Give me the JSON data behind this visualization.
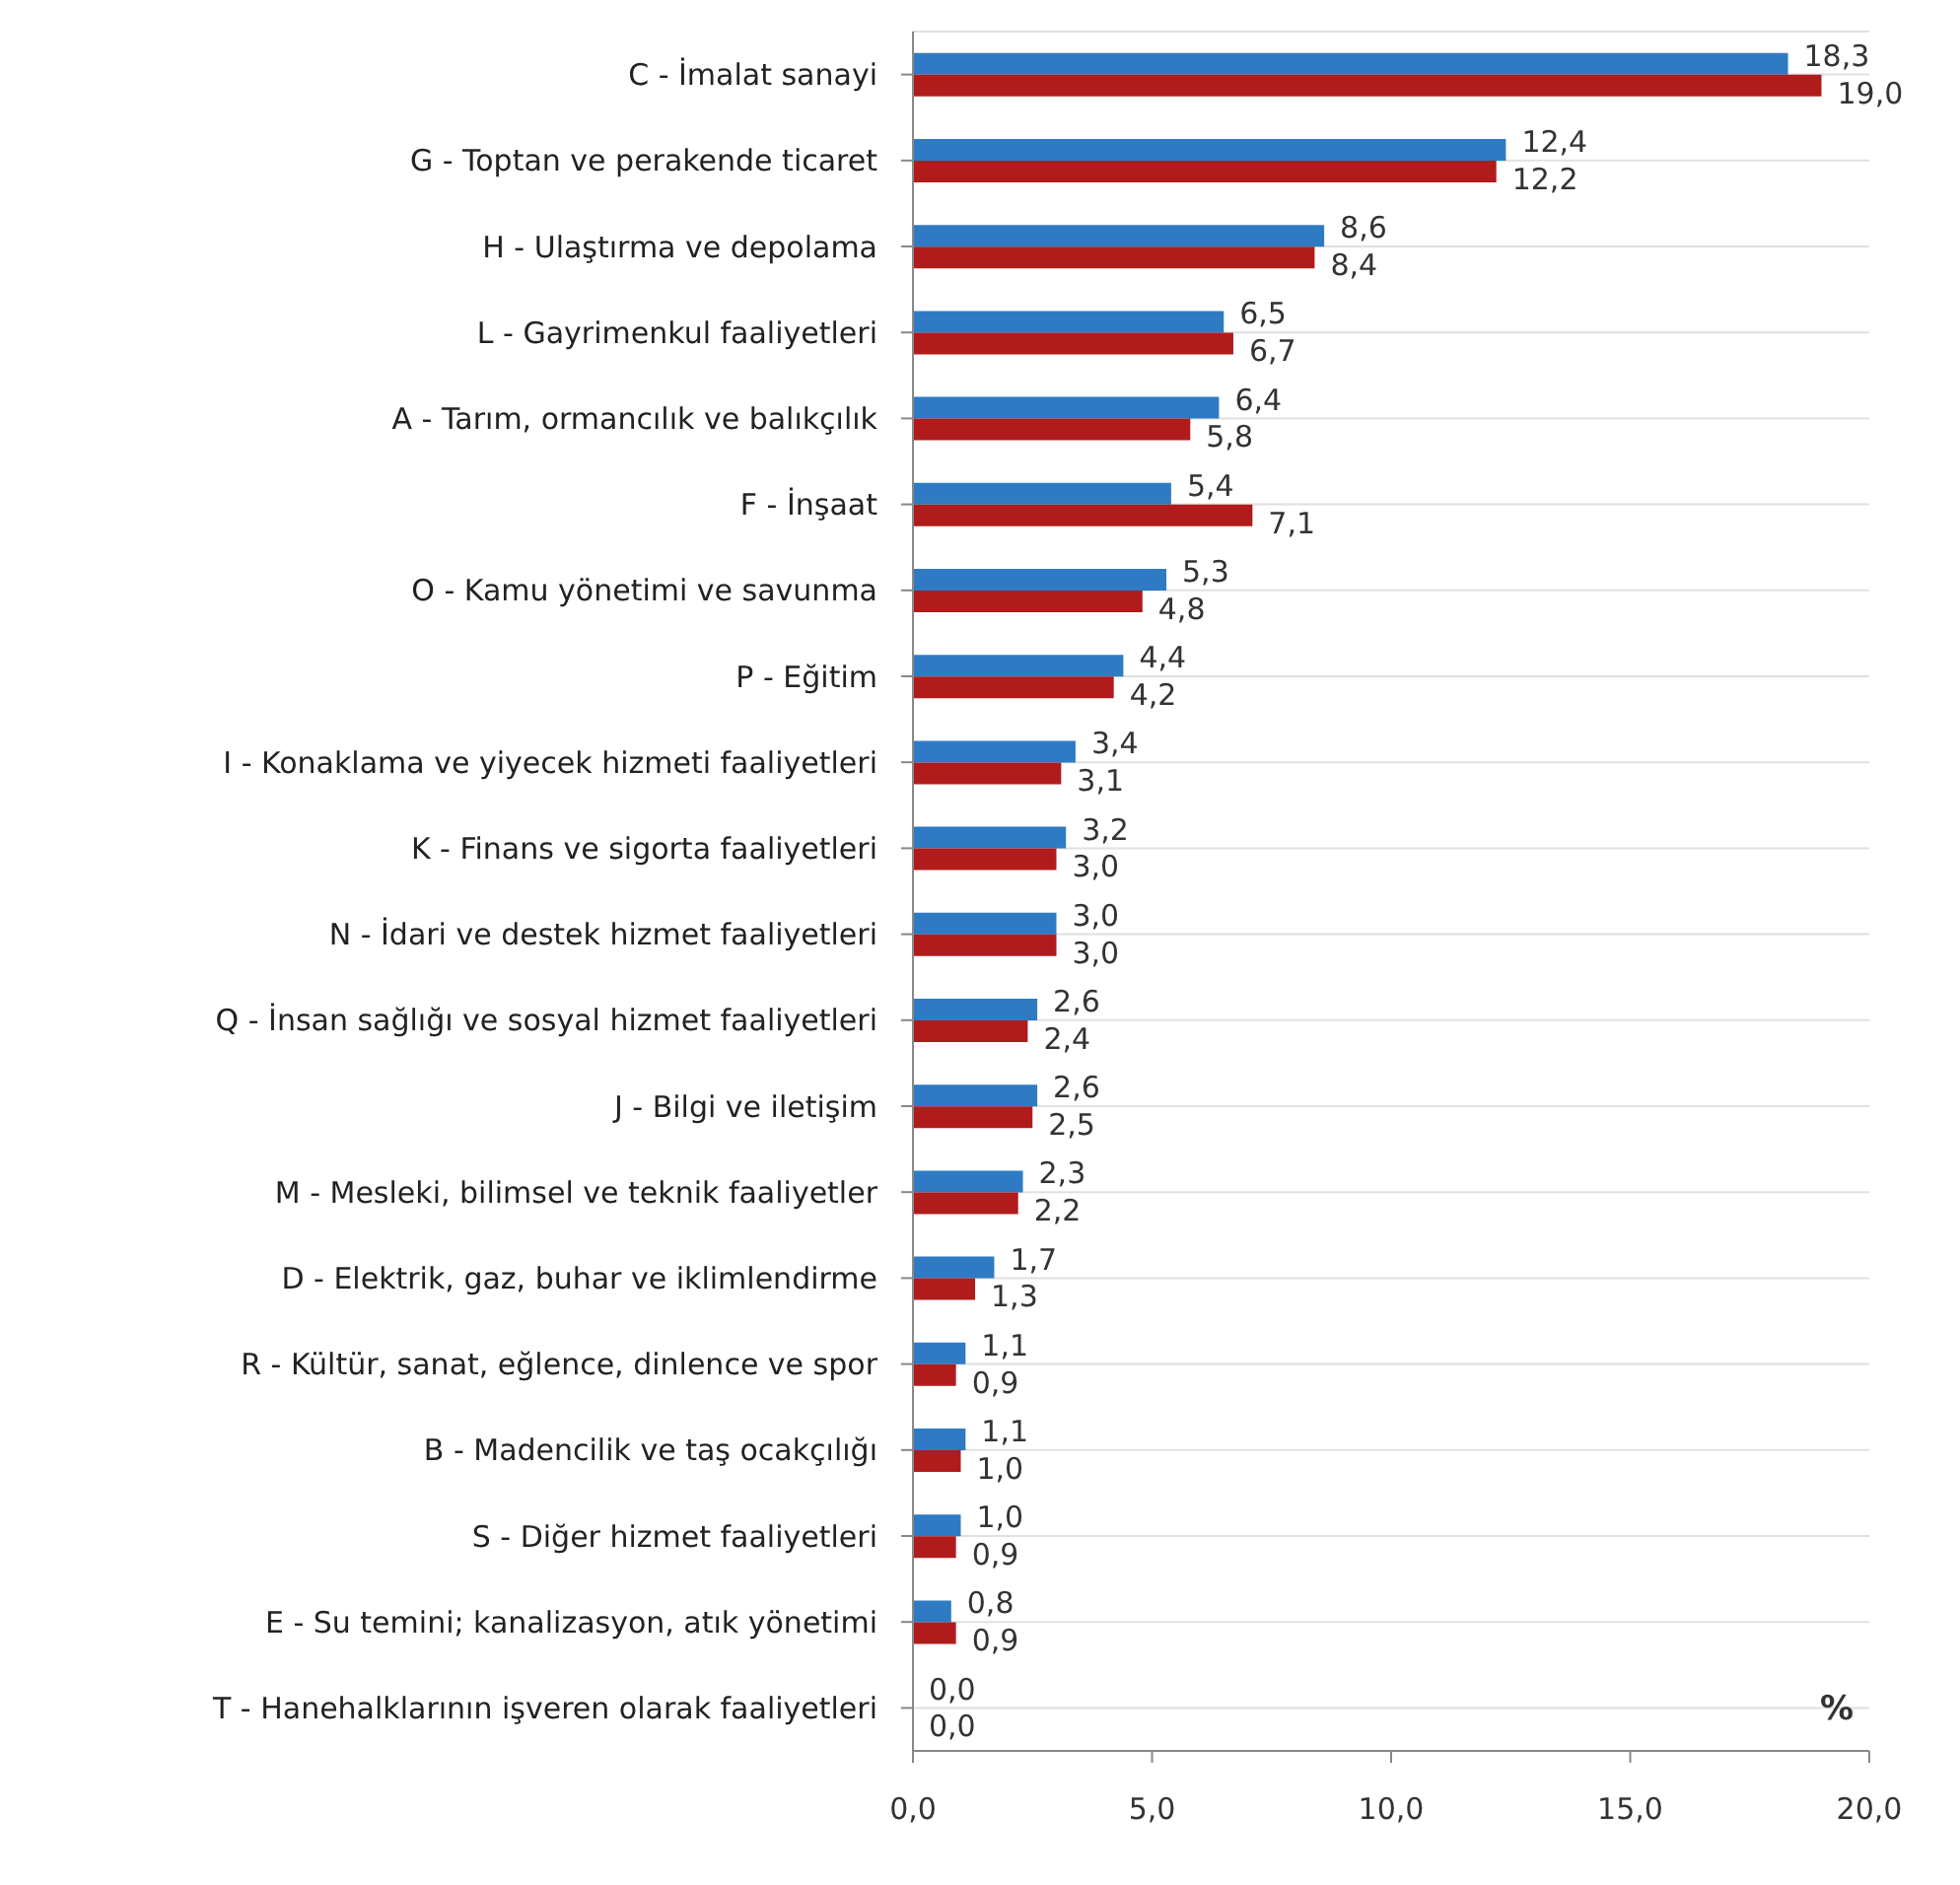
{
  "chart_data": {
    "type": "bar",
    "orientation": "horizontal",
    "categories": [
      "C - İmalat sanayi",
      "G - Toptan ve perakende ticaret",
      "H - Ulaştırma ve depolama",
      "L - Gayrimenkul faaliyetleri",
      "A - Tarım, ormancılık ve balıkçılık",
      "F - İnşaat",
      "O - Kamu yönetimi ve savunma",
      "P - Eğitim",
      "I - Konaklama ve yiyecek hizmeti faaliyetleri",
      "K - Finans ve sigorta faaliyetleri",
      "N - İdari ve destek hizmet faaliyetleri",
      "Q - İnsan sağlığı ve sosyal hizmet faaliyetleri",
      "J - Bilgi ve iletişim",
      "M - Mesleki, bilimsel ve teknik faaliyetler",
      "D - Elektrik, gaz, buhar ve iklimlendirme",
      "R - Kültür, sanat, eğlence, dinlence ve spor",
      "B - Madencilik ve taş ocakçılığı",
      "S - Diğer hizmet faaliyetleri",
      "E - Su temini; kanalizasyon, atık yönetimi",
      "T - Hanehalklarının işveren olarak faaliyetleri"
    ],
    "series": [
      {
        "color": "#2e7bc4",
        "values": [
          18.3,
          12.4,
          8.6,
          6.5,
          6.4,
          5.4,
          5.3,
          4.4,
          3.4,
          3.2,
          3.0,
          2.6,
          2.6,
          2.3,
          1.7,
          1.1,
          1.1,
          1.0,
          0.8,
          0.0
        ],
        "value_labels": [
          "18,3",
          "12,4",
          "8,6",
          "6,5",
          "6,4",
          "5,4",
          "5,3",
          "4,4",
          "3,4",
          "3,2",
          "3,0",
          "2,6",
          "2,6",
          "2,3",
          "1,7",
          "1,1",
          "1,1",
          "1,0",
          "0,8",
          "0,0"
        ]
      },
      {
        "color": "#b01c1c",
        "values": [
          19.0,
          12.2,
          8.4,
          6.7,
          5.8,
          7.1,
          4.8,
          4.2,
          3.1,
          3.0,
          3.0,
          2.4,
          2.5,
          2.2,
          1.3,
          0.9,
          1.0,
          0.9,
          0.9,
          0.0
        ],
        "value_labels": [
          "19,0",
          "12,2",
          "8,4",
          "6,7",
          "5,8",
          "7,1",
          "4,8",
          "4,2",
          "3,1",
          "3,0",
          "3,0",
          "2,4",
          "2,5",
          "2,2",
          "1,3",
          "0,9",
          "1,0",
          "0,9",
          "0,9",
          "0,0"
        ]
      }
    ],
    "xlim": [
      0,
      20
    ],
    "xticks": [
      {
        "value": 0,
        "label": "0,0"
      },
      {
        "value": 5,
        "label": "5,0"
      },
      {
        "value": 10,
        "label": "10,0"
      },
      {
        "value": 15,
        "label": "15,0"
      },
      {
        "value": 20,
        "label": "20,0"
      }
    ],
    "grid": "y",
    "legend": false,
    "annotations": [
      "%"
    ]
  }
}
